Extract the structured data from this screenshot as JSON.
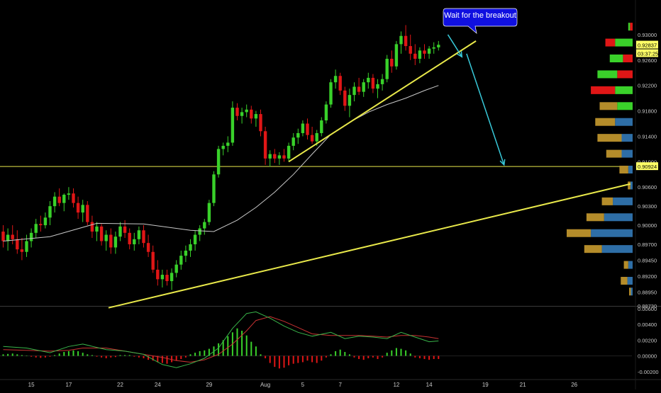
{
  "chart_data": {
    "type": "candlestick",
    "annotation": "Wait for the breakout",
    "colors": {
      "background": "#000000",
      "up": "#39d12a",
      "down": "#e01616",
      "support_line": "#e8e84a",
      "moving_average": "#c8c8c8",
      "arrow": "#38c8d8",
      "callout": "#1010e0",
      "macd_line": "#39b54a",
      "signal_line": "#c83232",
      "axis_text": "#c8c8c8",
      "vp_blue": "#2e6ea6",
      "vp_gold": "#b48c2a",
      "vp_green": "#3ad12a",
      "vp_red": "#e01616"
    },
    "price_axis": {
      "ylim": [
        0.8873,
        0.933
      ],
      "ticks": [
        "0.93000",
        "0.92600",
        "0.92200",
        "0.91800",
        "0.91400",
        "0.91000",
        "0.90600",
        "0.90300",
        "0.90000",
        "0.89700",
        "0.89450",
        "0.89200",
        "0.88950",
        "0.88730"
      ],
      "tick_values": [
        0.93,
        0.926,
        0.922,
        0.918,
        0.914,
        0.91,
        0.906,
        0.903,
        0.9,
        0.897,
        0.8945,
        0.892,
        0.8895,
        0.8873
      ],
      "current_price_label": "0.92837",
      "countdown_label": "03:37:25",
      "level_label": "0.90924",
      "current_price": 0.92837,
      "level_price": 0.90924
    },
    "macd_axis": {
      "ylim": [
        -0.0022,
        0.006
      ],
      "ticks": [
        "0.00600",
        "0.00400",
        "0.00200",
        "0.00000",
        "-0.00200"
      ],
      "tick_values": [
        0.006,
        0.004,
        0.002,
        0.0,
        -0.002
      ]
    },
    "x_axis": {
      "labels": [
        "15",
        "17",
        "22",
        "24",
        "29",
        "Aug",
        "5",
        "7",
        "12",
        "14",
        "19",
        "21",
        "26"
      ],
      "label_bars": [
        6,
        14,
        25,
        33,
        44,
        56,
        64,
        72,
        84,
        91,
        103,
        111,
        122
      ]
    },
    "ohlc": [
      [
        0.899,
        0.9,
        0.8965,
        0.8975
      ],
      [
        0.8975,
        0.8995,
        0.896,
        0.8985
      ],
      [
        0.8985,
        0.9,
        0.897,
        0.8978
      ],
      [
        0.8978,
        0.8992,
        0.8955,
        0.8962
      ],
      [
        0.8962,
        0.898,
        0.8945,
        0.8958
      ],
      [
        0.8958,
        0.8985,
        0.895,
        0.8975
      ],
      [
        0.8975,
        0.8995,
        0.8965,
        0.8988
      ],
      [
        0.8988,
        0.901,
        0.898,
        0.9002
      ],
      [
        0.9002,
        0.9015,
        0.899,
        0.9
      ],
      [
        0.9,
        0.902,
        0.8995,
        0.9012
      ],
      [
        0.9012,
        0.9038,
        0.9,
        0.903
      ],
      [
        0.903,
        0.9052,
        0.902,
        0.9045
      ],
      [
        0.9045,
        0.9058,
        0.903,
        0.9035
      ],
      [
        0.9035,
        0.905,
        0.9022,
        0.9048
      ],
      [
        0.9048,
        0.906,
        0.904,
        0.905
      ],
      [
        0.905,
        0.9058,
        0.9028,
        0.9035
      ],
      [
        0.9035,
        0.9045,
        0.901,
        0.902
      ],
      [
        0.902,
        0.904,
        0.9005,
        0.9032
      ],
      [
        0.9032,
        0.9038,
        0.9,
        0.9005
      ],
      [
        0.9005,
        0.9015,
        0.898,
        0.899
      ],
      [
        0.899,
        0.9005,
        0.8975,
        0.8998
      ],
      [
        0.8998,
        0.9002,
        0.8968,
        0.8975
      ],
      [
        0.8975,
        0.8992,
        0.896,
        0.8985
      ],
      [
        0.8985,
        0.8995,
        0.8955,
        0.8965
      ],
      [
        0.8965,
        0.899,
        0.8955,
        0.8982
      ],
      [
        0.8982,
        0.9005,
        0.8975,
        0.8998
      ],
      [
        0.8998,
        0.9008,
        0.898,
        0.8988
      ],
      [
        0.8988,
        0.8995,
        0.8962,
        0.897
      ],
      [
        0.897,
        0.8988,
        0.896,
        0.8978
      ],
      [
        0.8978,
        0.8998,
        0.897,
        0.8992
      ],
      [
        0.8992,
        0.9,
        0.8965,
        0.8972
      ],
      [
        0.8972,
        0.8985,
        0.895,
        0.8958
      ],
      [
        0.8958,
        0.8968,
        0.8925,
        0.893
      ],
      [
        0.893,
        0.8945,
        0.8905,
        0.8915
      ],
      [
        0.8915,
        0.893,
        0.8902,
        0.8922
      ],
      [
        0.8922,
        0.893,
        0.8905,
        0.8912
      ],
      [
        0.8912,
        0.8932,
        0.8898,
        0.8925
      ],
      [
        0.8925,
        0.8945,
        0.8918,
        0.8938
      ],
      [
        0.8938,
        0.896,
        0.893,
        0.8952
      ],
      [
        0.8952,
        0.8968,
        0.8942,
        0.896
      ],
      [
        0.896,
        0.8978,
        0.895,
        0.897
      ],
      [
        0.897,
        0.8992,
        0.896,
        0.8985
      ],
      [
        0.8985,
        0.9,
        0.8975,
        0.8995
      ],
      [
        0.8995,
        0.901,
        0.8985,
        0.9005
      ],
      [
        0.9005,
        0.904,
        0.9,
        0.9035
      ],
      [
        0.9035,
        0.9085,
        0.903,
        0.908
      ],
      [
        0.908,
        0.9125,
        0.9075,
        0.912
      ],
      [
        0.912,
        0.913,
        0.911,
        0.9125
      ],
      [
        0.9125,
        0.914,
        0.9115,
        0.913
      ],
      [
        0.913,
        0.9195,
        0.9125,
        0.9185
      ],
      [
        0.9185,
        0.9192,
        0.9165,
        0.9172
      ],
      [
        0.9172,
        0.9185,
        0.916,
        0.9178
      ],
      [
        0.9178,
        0.919,
        0.917,
        0.9182
      ],
      [
        0.9182,
        0.9188,
        0.916,
        0.9168
      ],
      [
        0.9168,
        0.918,
        0.9155,
        0.9175
      ],
      [
        0.9175,
        0.9182,
        0.914,
        0.9148
      ],
      [
        0.9148,
        0.9155,
        0.9095,
        0.9105
      ],
      [
        0.9105,
        0.9118,
        0.9092,
        0.9112
      ],
      [
        0.9112,
        0.912,
        0.9098,
        0.9105
      ],
      [
        0.9105,
        0.9115,
        0.9095,
        0.911
      ],
      [
        0.911,
        0.912,
        0.91,
        0.9105
      ],
      [
        0.9105,
        0.913,
        0.91,
        0.9125
      ],
      [
        0.9125,
        0.9145,
        0.9118,
        0.9138
      ],
      [
        0.9138,
        0.9152,
        0.9128,
        0.9145
      ],
      [
        0.9145,
        0.9165,
        0.914,
        0.916
      ],
      [
        0.916,
        0.9168,
        0.9135,
        0.9142
      ],
      [
        0.9142,
        0.9155,
        0.9128,
        0.9132
      ],
      [
        0.9132,
        0.915,
        0.9125,
        0.9145
      ],
      [
        0.9145,
        0.917,
        0.914,
        0.9165
      ],
      [
        0.9165,
        0.9195,
        0.916,
        0.919
      ],
      [
        0.919,
        0.923,
        0.9185,
        0.9225
      ],
      [
        0.9225,
        0.9245,
        0.9215,
        0.9235
      ],
      [
        0.9235,
        0.924,
        0.9205,
        0.9212
      ],
      [
        0.9212,
        0.9218,
        0.918,
        0.9188
      ],
      [
        0.9188,
        0.9215,
        0.917,
        0.9205
      ],
      [
        0.9205,
        0.9225,
        0.9195,
        0.9218
      ],
      [
        0.9218,
        0.9232,
        0.9205,
        0.921
      ],
      [
        0.921,
        0.923,
        0.9202,
        0.9225
      ],
      [
        0.9225,
        0.924,
        0.9215,
        0.9232
      ],
      [
        0.9232,
        0.9238,
        0.9208,
        0.9215
      ],
      [
        0.9215,
        0.923,
        0.92,
        0.9222
      ],
      [
        0.9222,
        0.9238,
        0.9212,
        0.923
      ],
      [
        0.923,
        0.9268,
        0.9225,
        0.9262
      ],
      [
        0.9262,
        0.9275,
        0.924,
        0.925
      ],
      [
        0.925,
        0.929,
        0.9245,
        0.9285
      ],
      [
        0.9285,
        0.9305,
        0.927,
        0.9298
      ],
      [
        0.9298,
        0.9315,
        0.9275,
        0.9282
      ],
      [
        0.9282,
        0.93,
        0.926,
        0.927
      ],
      [
        0.927,
        0.9285,
        0.9252,
        0.9262
      ],
      [
        0.9262,
        0.928,
        0.9255,
        0.9275
      ],
      [
        0.9275,
        0.9285,
        0.9262,
        0.927
      ],
      [
        0.927,
        0.9282,
        0.9262,
        0.9278
      ],
      [
        0.9278,
        0.9288,
        0.927,
        0.928
      ],
      [
        0.928,
        0.929,
        0.9275,
        0.9284
      ]
    ],
    "moving_average": {
      "points": [
        [
          0,
          0.8975
        ],
        [
          10,
          0.8982
        ],
        [
          20,
          0.9003
        ],
        [
          30,
          0.9002
        ],
        [
          40,
          0.8992
        ],
        [
          45,
          0.899
        ],
        [
          50,
          0.9008
        ],
        [
          54,
          0.9028
        ],
        [
          58,
          0.9052
        ],
        [
          62,
          0.908
        ],
        [
          66,
          0.9112
        ],
        [
          70,
          0.9143
        ],
        [
          74,
          0.9162
        ],
        [
          78,
          0.9178
        ],
        [
          82,
          0.919
        ],
        [
          86,
          0.92
        ],
        [
          90,
          0.9212
        ],
        [
          93,
          0.922
        ]
      ]
    },
    "support_lines": [
      {
        "from": [
          22.5,
          0.887
        ],
        "to": [
          134,
          0.9065
        ]
      },
      {
        "from": [
          61,
          0.91
        ],
        "to": [
          101,
          0.929
        ]
      }
    ],
    "arrows": [
      {
        "from": [
          95,
          0.93
        ],
        "to": [
          98,
          0.9265
        ]
      },
      {
        "from": [
          99,
          0.927
        ],
        "to": [
          107,
          0.9095
        ]
      }
    ],
    "macd": {
      "histogram": [
        0.0002,
        0.00025,
        0.0003,
        0.0002,
        0.0001,
        5e-05,
        -0.0001,
        -0.0002,
        -0.00025,
        -0.0002,
        -0.0001,
        0.0001,
        0.0003,
        0.0005,
        0.0006,
        0.0007,
        0.0006,
        0.0004,
        0.0002,
        0.0001,
        -0.0001,
        -0.0002,
        -0.0003,
        -0.0002,
        -0.00015,
        0.0001,
        0.0001,
        0.0001,
        -0.0001,
        -0.0002,
        -0.0003,
        -0.0005,
        -0.0006,
        -0.0008,
        -0.0009,
        -0.001,
        -0.0008,
        -0.0006,
        -0.0004,
        -0.0002,
        0.0002,
        0.0004,
        0.0006,
        0.0007,
        0.0009,
        0.0012,
        0.0016,
        0.002,
        0.0025,
        0.003,
        0.0035,
        0.0032,
        0.0026,
        0.0018,
        0.0012,
        0.0002,
        -0.0003,
        -0.0009,
        -0.0014,
        -0.0016,
        -0.0015,
        -0.0012,
        -0.001,
        -0.0009,
        -0.0008,
        -0.0006,
        -0.0008,
        -0.0009,
        -0.0006,
        -0.0002,
        0.0002,
        0.0006,
        0.0008,
        0.0005,
        0.0002,
        -0.0002,
        -0.0004,
        -0.0005,
        -0.0003,
        -0.0002,
        -0.0004,
        -0.0002,
        0.0004,
        0.0007,
        0.001,
        0.0009,
        0.0007,
        0.0003,
        -0.0002,
        -0.0003,
        -0.0004,
        -0.0005,
        -0.0004,
        -0.0004
      ],
      "macd_line": [
        [
          0,
          0.0012
        ],
        [
          5,
          0.001
        ],
        [
          10,
          0.0004
        ],
        [
          14,
          0.0012
        ],
        [
          17,
          0.0015
        ],
        [
          22,
          0.0008
        ],
        [
          26,
          0.0006
        ],
        [
          30,
          0.0002
        ],
        [
          34,
          -0.0011
        ],
        [
          37,
          -0.0015
        ],
        [
          40,
          -0.001
        ],
        [
          43,
          -0.0003
        ],
        [
          46,
          0.001
        ],
        [
          49,
          0.0035
        ],
        [
          52,
          0.0054
        ],
        [
          54,
          0.0056
        ],
        [
          57,
          0.0048
        ],
        [
          60,
          0.0038
        ],
        [
          63,
          0.003
        ],
        [
          66,
          0.0025
        ],
        [
          70,
          0.003
        ],
        [
          73,
          0.0022
        ],
        [
          76,
          0.0025
        ],
        [
          79,
          0.0024
        ],
        [
          82,
          0.0022
        ],
        [
          85,
          0.003
        ],
        [
          88,
          0.0024
        ],
        [
          91,
          0.0018
        ],
        [
          93,
          0.0019
        ]
      ],
      "signal_line": [
        [
          0,
          0.0008
        ],
        [
          5,
          0.0007
        ],
        [
          10,
          0.0006
        ],
        [
          14,
          0.0007
        ],
        [
          17,
          0.001
        ],
        [
          22,
          0.001
        ],
        [
          26,
          0.0006
        ],
        [
          30,
          0.0002
        ],
        [
          34,
          -0.0002
        ],
        [
          37,
          -0.0006
        ],
        [
          40,
          -0.0008
        ],
        [
          43,
          -0.0005
        ],
        [
          46,
          0.0002
        ],
        [
          49,
          0.0015
        ],
        [
          52,
          0.0032
        ],
        [
          54,
          0.0045
        ],
        [
          57,
          0.005
        ],
        [
          60,
          0.0044
        ],
        [
          63,
          0.0036
        ],
        [
          66,
          0.0028
        ],
        [
          70,
          0.0026
        ],
        [
          73,
          0.0026
        ],
        [
          76,
          0.0026
        ],
        [
          79,
          0.0025
        ],
        [
          82,
          0.0024
        ],
        [
          85,
          0.0026
        ],
        [
          88,
          0.0026
        ],
        [
          91,
          0.0024
        ],
        [
          93,
          0.0022
        ]
      ]
    },
    "volume_profile": [
      {
        "price": 0.9312,
        "up": 0.04,
        "down": 0.06,
        "color": "green"
      },
      {
        "price": 0.9287,
        "up": 0.22,
        "down": 0.4,
        "color": "red"
      },
      {
        "price": 0.9262,
        "up": 0.3,
        "down": 0.22,
        "color": "green"
      },
      {
        "price": 0.9237,
        "up": 0.45,
        "down": 0.35,
        "color": "green"
      },
      {
        "price": 0.9212,
        "up": 0.55,
        "down": 0.4,
        "color": "red"
      },
      {
        "price": 0.9187,
        "up": 0.4,
        "down": 0.35,
        "color": "mixed"
      },
      {
        "price": 0.9162,
        "up": 0.45,
        "down": 0.4,
        "color": "gold-blue"
      },
      {
        "price": 0.9137,
        "up": 0.55,
        "down": 0.25,
        "color": "gold-blue"
      },
      {
        "price": 0.9112,
        "up": 0.35,
        "down": 0.25,
        "color": "gold-blue"
      },
      {
        "price": 0.9087,
        "up": 0.2,
        "down": 0.1,
        "color": "gold-blue"
      },
      {
        "price": 0.9062,
        "up": 0.06,
        "down": 0.05,
        "color": "gold-blue"
      },
      {
        "price": 0.9037,
        "up": 0.25,
        "down": 0.45,
        "color": "gold-blue"
      },
      {
        "price": 0.9012,
        "up": 0.4,
        "down": 0.65,
        "color": "gold-blue"
      },
      {
        "price": 0.8987,
        "up": 0.55,
        "down": 0.95,
        "color": "gold-blue"
      },
      {
        "price": 0.8962,
        "up": 0.4,
        "down": 0.7,
        "color": "gold-blue"
      },
      {
        "price": 0.8937,
        "up": 0.1,
        "down": 0.1,
        "color": "gold-blue"
      },
      {
        "price": 0.8912,
        "up": 0.15,
        "down": 0.12,
        "color": "gold-blue"
      },
      {
        "price": 0.8895,
        "up": 0.04,
        "down": 0.04,
        "color": "gold-blue"
      }
    ]
  }
}
